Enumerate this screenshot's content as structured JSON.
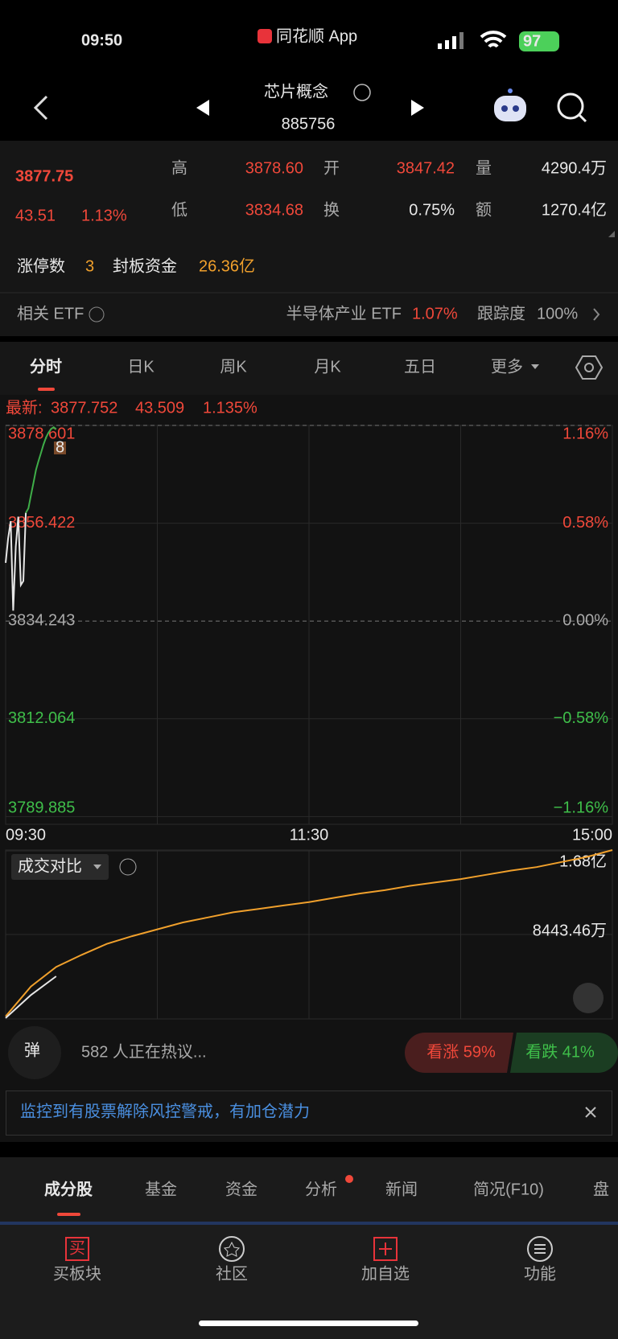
{
  "status_bar": {
    "time": "09:50",
    "app": "同花顺 App",
    "battery": "97"
  },
  "header": {
    "title": "芯片概念",
    "code": "885756"
  },
  "quote": {
    "price": "3877.75",
    "change": "43.51",
    "change_pct": "1.13%",
    "stats": [
      {
        "label": "高",
        "value": "3878.60"
      },
      {
        "label": "开",
        "value": "3847.42"
      },
      {
        "label": "量",
        "value": "4290.4万"
      },
      {
        "label": "低",
        "value": "3834.68"
      },
      {
        "label": "换",
        "value": "0.75%"
      },
      {
        "label": "额",
        "value": "1270.4亿"
      }
    ]
  },
  "limit_up": {
    "count_label": "涨停数",
    "count": "3",
    "fund_label": "封板资金",
    "fund": "26.36亿"
  },
  "etf": {
    "label": "相关 ETF",
    "name": "半导体产业 ETF",
    "change": "1.07%",
    "tracking_label": "跟踪度",
    "tracking": "100%"
  },
  "period_tabs": [
    "分时",
    "日K",
    "周K",
    "月K",
    "五日",
    "更多"
  ],
  "latest": {
    "label": "最新:",
    "price": "3877.752",
    "change": "43.509",
    "pct": "1.135%"
  },
  "intraday": {
    "marker": "8",
    "xticks": [
      "09:30",
      "11:30",
      "15:00"
    ],
    "ylim": [
      3788.13,
      3878.601
    ],
    "yticks": [
      3878.601,
      3856.422,
      3834.243,
      3812.064,
      3789.885
    ],
    "y2ticks": [
      {
        "value": 1.16,
        "label": "1.16%"
      },
      {
        "value": 0.58,
        "label": "0.58%"
      },
      {
        "value": 0,
        "label": "0.00%"
      },
      {
        "value": -0.58,
        "label": "−0.58%"
      },
      {
        "value": -1.16,
        "label": "−1.16%"
      }
    ],
    "series": [
      {
        "color": "#e6e6e6",
        "values": [
          3847.42,
          3853.0,
          3856.9,
          3836.6,
          3851.1,
          3857.9,
          3842.4,
          3843.3,
          3858.8,
          null,
          null,
          null,
          null,
          null,
          null,
          null,
          null,
          null,
          null,
          null,
          null
        ]
      },
      {
        "color": "#3fae49",
        "values": [
          null,
          null,
          null,
          null,
          null,
          null,
          null,
          null,
          3858.8,
          3859.8,
          3862.7,
          3865.6,
          3868.5,
          3870.5,
          3872.4,
          3874.3,
          3875.9,
          3877.0,
          3877.8,
          3878.2,
          3877.75
        ]
      }
    ]
  },
  "volume_compare": {
    "label": "成交对比",
    "ylim": [
      0,
      16886.92
    ],
    "yticks": [
      {
        "value": 16800,
        "label": "1.68亿"
      },
      {
        "value": 8443.46,
        "label": "8443.46万"
      }
    ],
    "series": [
      {
        "color": "#f0a02c",
        "values": [
          256,
          3241,
          5203,
          6397,
          7505,
          8273,
          8955,
          9638,
          10149,
          10661,
          11002,
          11343,
          11684,
          12111,
          12537,
          12878,
          13305,
          13646,
          13987,
          14413,
          14840,
          15181,
          15693,
          16205,
          16887
        ]
      },
      {
        "color": "#e6e6e6",
        "values": [
          85,
          2388,
          4264,
          null,
          null,
          null,
          null,
          null,
          null,
          null,
          null,
          null,
          null,
          null,
          null,
          null,
          null,
          null,
          null,
          null,
          null,
          null,
          null,
          null,
          null
        ]
      }
    ]
  },
  "discussion": {
    "icon": "弹",
    "text": "582 人正在热议...",
    "bull": "看涨 59%",
    "bear": "看跌 41%"
  },
  "banner": "监控到有股票解除风控警戒，有加仓潜力",
  "section_tabs": [
    "成分股",
    "基金",
    "资金",
    "分析",
    "新闻",
    "简况(F10)",
    "盘"
  ],
  "bottom_nav": [
    {
      "icon": "买",
      "label": "买板块"
    },
    {
      "label": "社区"
    },
    {
      "label": "加自选"
    },
    {
      "label": "功能"
    }
  ]
}
